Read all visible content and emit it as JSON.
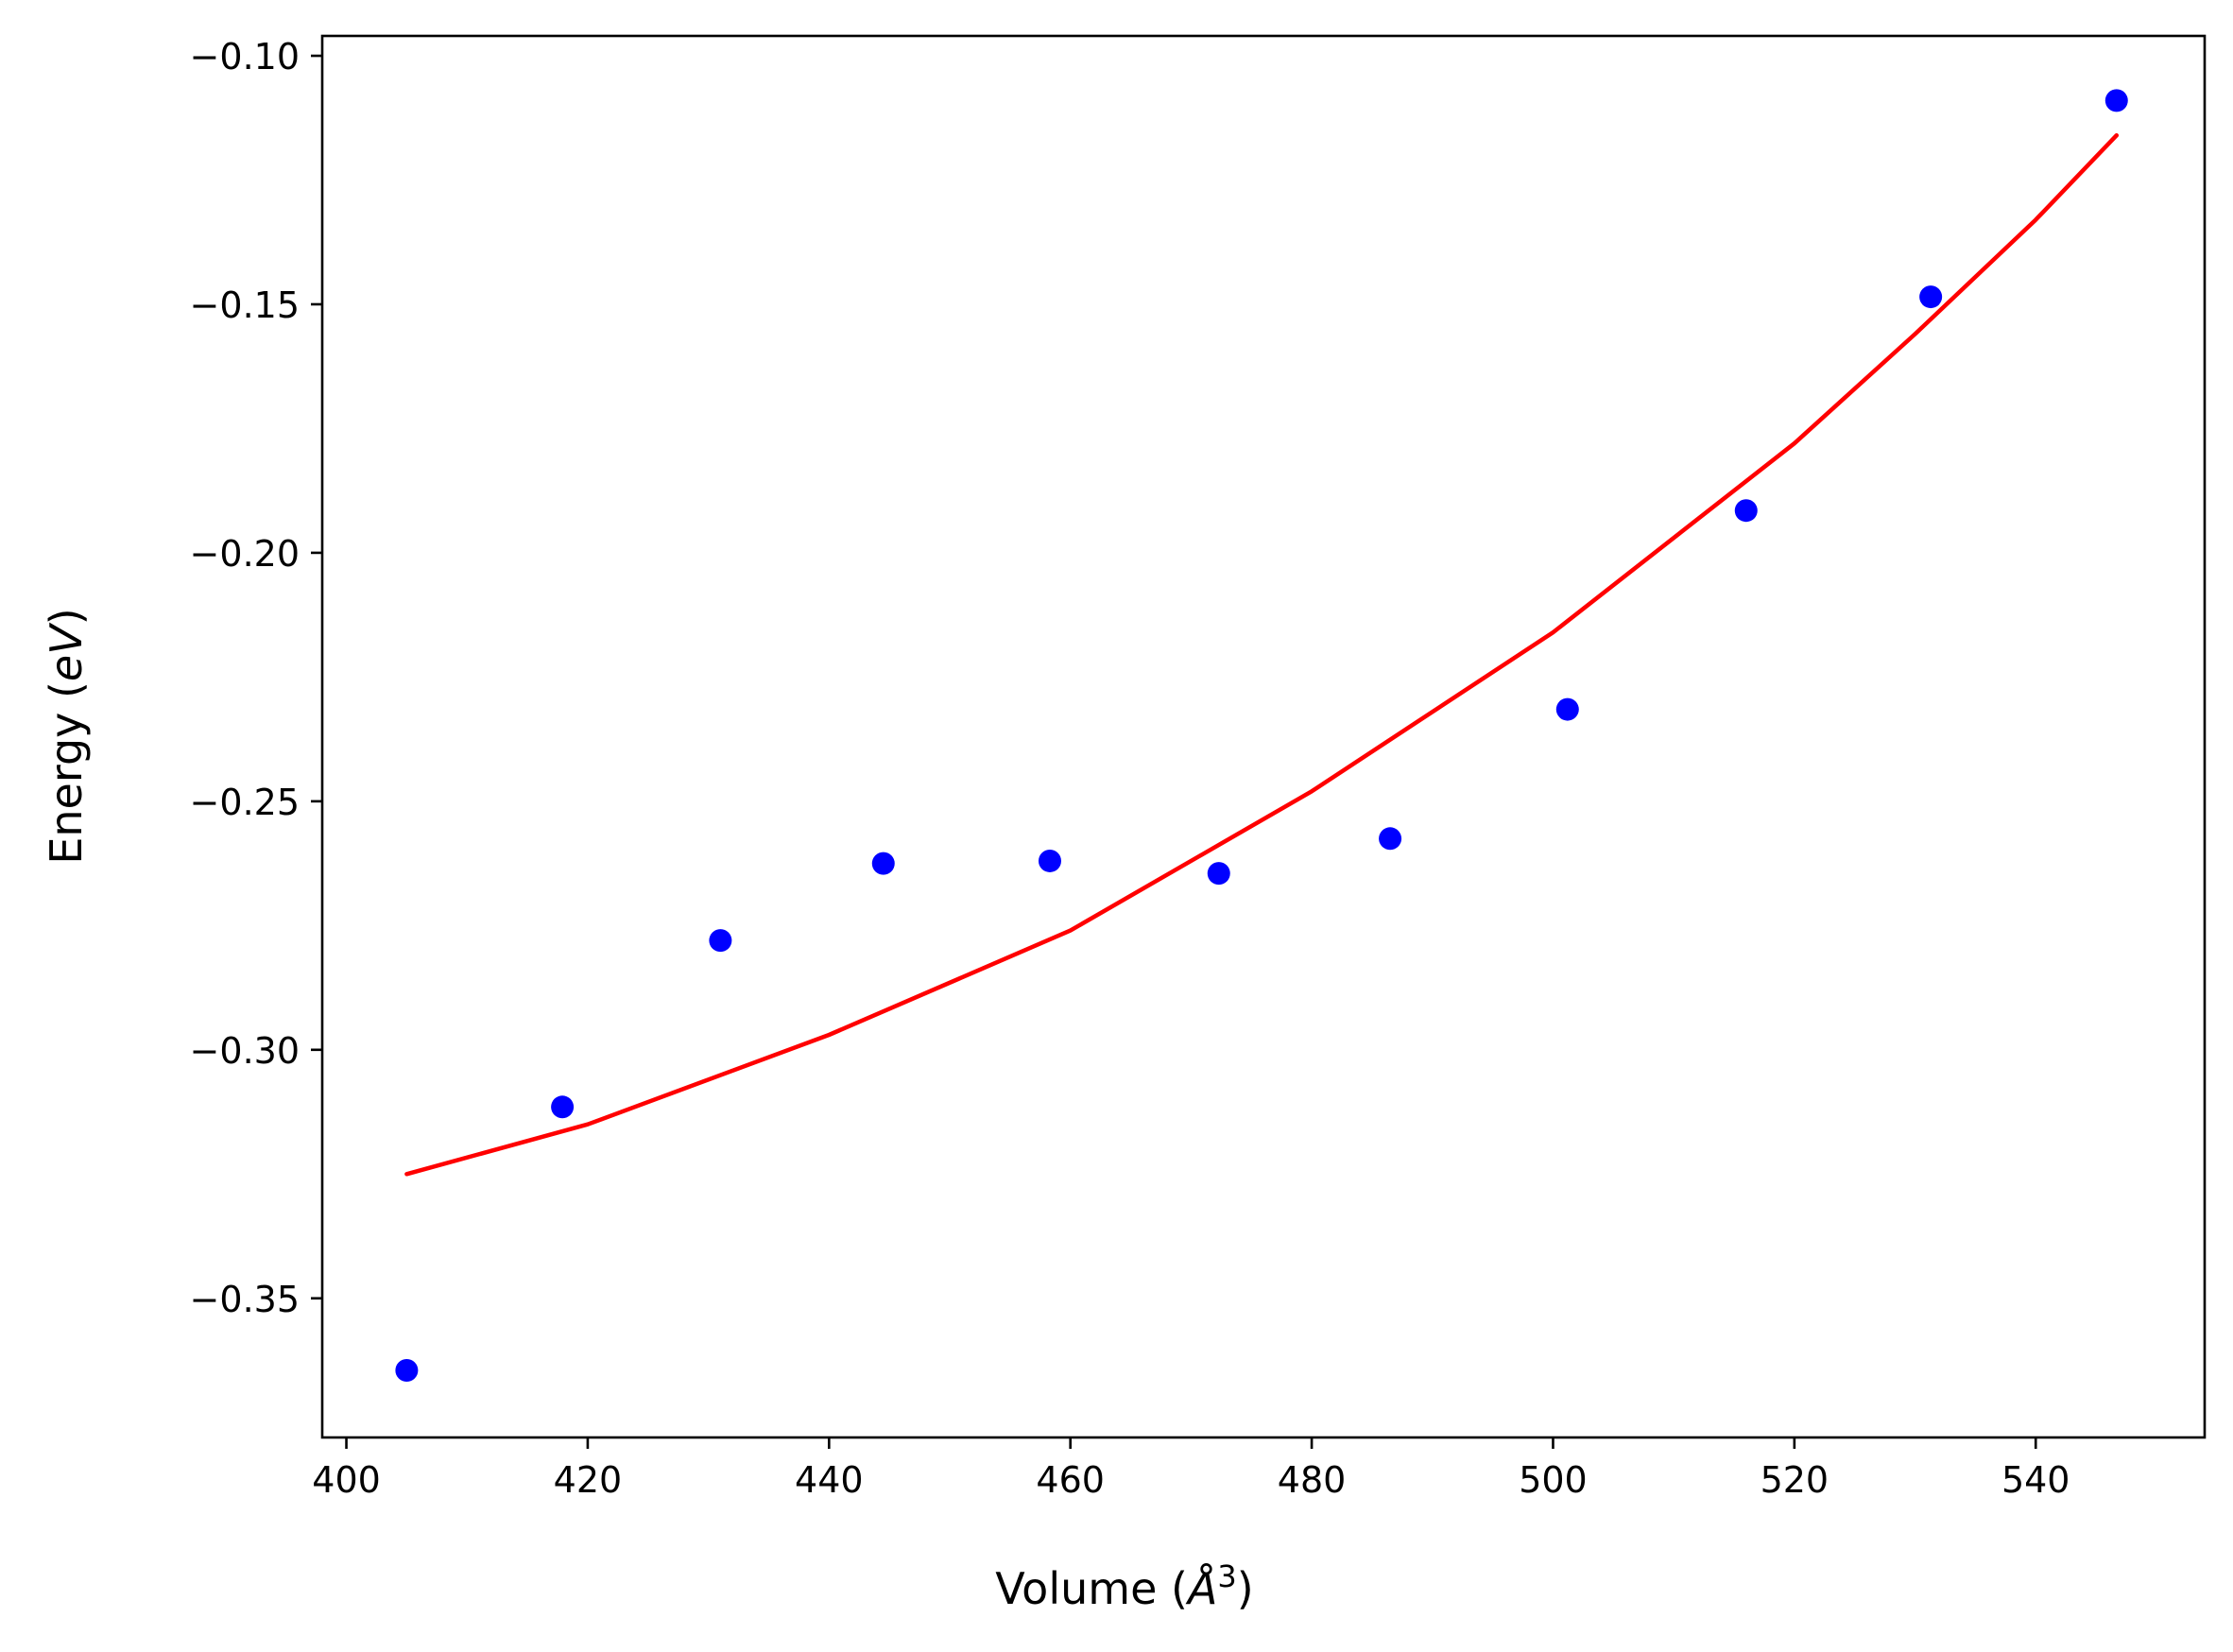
{
  "chart_data": {
    "type": "scatter",
    "title": "",
    "xlabel": {
      "prefix": "Volume (",
      "symbol": "Å",
      "superscript": "3",
      "suffix": ")"
    },
    "ylabel": {
      "prefix": "Energy (",
      "symbol": "eV",
      "suffix": ")"
    },
    "xlim": [
      398,
      554
    ],
    "ylim": [
      -0.378,
      -0.096
    ],
    "xticks": [
      {
        "value": 400,
        "label": "400"
      },
      {
        "value": 420,
        "label": "420"
      },
      {
        "value": 440,
        "label": "440"
      },
      {
        "value": 460,
        "label": "460"
      },
      {
        "value": 480,
        "label": "480"
      },
      {
        "value": 500,
        "label": "500"
      },
      {
        "value": 520,
        "label": "520"
      },
      {
        "value": 540,
        "label": "540"
      }
    ],
    "yticks": [
      {
        "value": -0.1,
        "label": "−0.10"
      },
      {
        "value": -0.15,
        "label": "−0.15"
      },
      {
        "value": -0.2,
        "label": "−0.20"
      },
      {
        "value": -0.25,
        "label": "−0.25"
      },
      {
        "value": -0.3,
        "label": "−0.30"
      },
      {
        "value": -0.35,
        "label": "−0.35"
      }
    ],
    "grid": false,
    "legend": "none",
    "series": [
      {
        "kind": "scatter",
        "color": "#0000ff",
        "points": [
          {
            "x": 405.0,
            "y": -0.3645
          },
          {
            "x": 417.9,
            "y": -0.3115
          },
          {
            "x": 431.0,
            "y": -0.278
          },
          {
            "x": 444.5,
            "y": -0.2625
          },
          {
            "x": 458.3,
            "y": -0.262
          },
          {
            "x": 472.3,
            "y": -0.2645
          },
          {
            "x": 486.5,
            "y": -0.2575
          },
          {
            "x": 501.2,
            "y": -0.2315
          },
          {
            "x": 516.0,
            "y": -0.1915
          },
          {
            "x": 531.3,
            "y": -0.1485
          },
          {
            "x": 546.7,
            "y": -0.109
          }
        ]
      },
      {
        "kind": "line",
        "color": "#ff0000",
        "points": [
          {
            "x": 405.0,
            "y": -0.325
          },
          {
            "x": 420.0,
            "y": -0.315
          },
          {
            "x": 440.0,
            "y": -0.297
          },
          {
            "x": 460.0,
            "y": -0.276
          },
          {
            "x": 480.0,
            "y": -0.248
          },
          {
            "x": 500.0,
            "y": -0.216
          },
          {
            "x": 520.0,
            "y": -0.178
          },
          {
            "x": 530.0,
            "y": -0.156
          },
          {
            "x": 540.0,
            "y": -0.133
          },
          {
            "x": 546.7,
            "y": -0.116
          }
        ]
      }
    ]
  }
}
